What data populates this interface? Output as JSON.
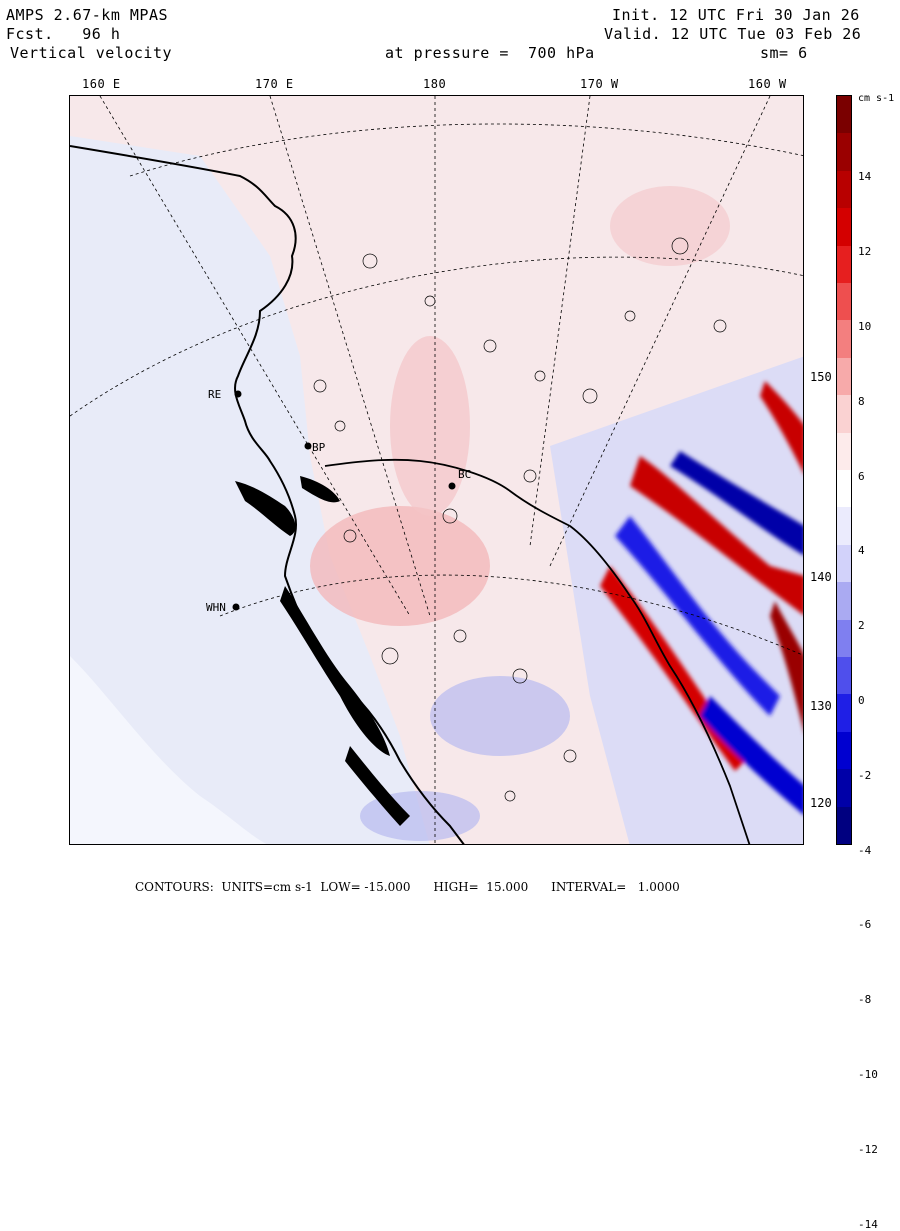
{
  "header": {
    "model": "AMPS 2.67-km MPAS",
    "fcst": "Fcst.   96 h",
    "field": "Vertical velocity",
    "init": "Init. 12 UTC Fri 30 Jan 26",
    "valid": "Valid. 12 UTC Tue 03 Feb 26",
    "pressure": "at pressure =  700 hPa",
    "smooth": "sm= 6"
  },
  "lon_labels": [
    "160 E",
    "170 E",
    "180",
    "170 W",
    "160 W"
  ],
  "lat_labels": [
    "150 W",
    "140 W",
    "130 W",
    "120 W"
  ],
  "stations": [
    "RE",
    "WHN",
    "BC",
    "BP"
  ],
  "colorbar": {
    "unit": "cm s-1",
    "ticks": [
      "14",
      "12",
      "10",
      "8",
      "6",
      "4",
      "2",
      "0",
      "-2",
      "-4",
      "-6",
      "-8",
      "-10",
      "-12",
      "-14"
    ],
    "colors": [
      "#7a0000",
      "#9a0000",
      "#b80000",
      "#d40000",
      "#e61f1f",
      "#ee4f4f",
      "#f37f7f",
      "#f7aaaa",
      "#fad2d2",
      "#fdebeb",
      "#ffffff",
      "#ebebfd",
      "#d2d2fa",
      "#aaaaf2",
      "#7f7ff0",
      "#4f4fec",
      "#1f1fe6",
      "#0000d0",
      "#0000a8",
      "#000080"
    ]
  },
  "footer": "CONTOURS:  UNITS=cm s-1  LOW= -15.000      HIGH=  15.000      INTERVAL=   1.0000",
  "colors": {
    "bg_pos": "#fbe4e4",
    "bg_neg": "#e6e8fb",
    "land": "#e8ebf8"
  }
}
